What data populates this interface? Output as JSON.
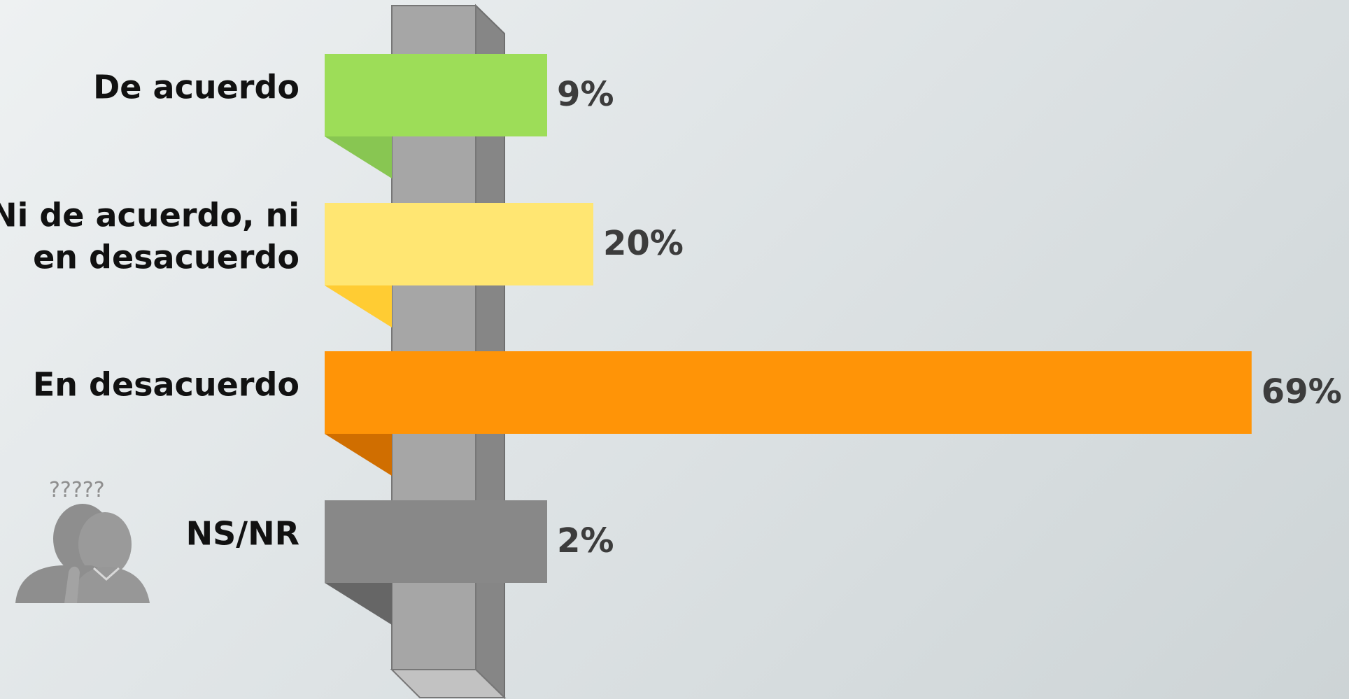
{
  "chart_data": {
    "type": "bar",
    "orientation": "horizontal",
    "categories": [
      [
        "De acuerdo"
      ],
      [
        "Ni de acuerdo, ni",
        "en desacuerdo"
      ],
      [
        "En desacuerdo"
      ],
      [
        "NS/NR"
      ]
    ],
    "values": [
      9,
      20,
      69,
      2
    ],
    "value_labels": [
      "9%",
      "20%",
      "69%",
      "2%"
    ],
    "unit": "%",
    "colors": {
      "bars": [
        "#9ddd58",
        "#ffe672",
        "#ff9407",
        "#888888"
      ],
      "shadows": [
        "#88c652",
        "#ffcc33",
        "#d06e00",
        "#666666"
      ],
      "post_front": "#a6a6a6",
      "post_side": "#868686",
      "post_top": "#c2c2c2",
      "icon": "#8e8e8e"
    },
    "title": "",
    "xlabel": "",
    "ylabel": "",
    "grid": false,
    "legend": "none",
    "icon": "confused-people-icon",
    "icon_question_marks": "?????"
  }
}
